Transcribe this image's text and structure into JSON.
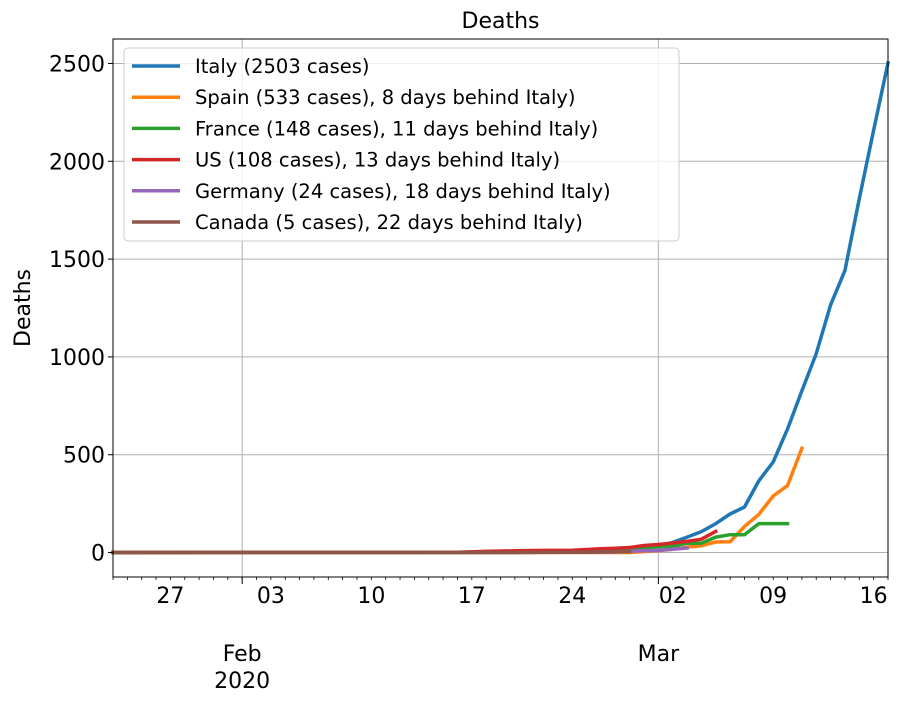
{
  "chart_data": {
    "type": "line",
    "title": "Deaths",
    "xlabel": "",
    "ylabel": "Deaths",
    "xlim": [
      "2020-01-23",
      "2020-03-17"
    ],
    "ylim": [
      -125,
      2625
    ],
    "grid": true,
    "legend_position": "top-left",
    "yticks": [
      0,
      500,
      1000,
      1500,
      2000,
      2500
    ],
    "xticks": [
      {
        "date": "2020-01-27",
        "label": "27"
      },
      {
        "date": "2020-02-03",
        "label": "03"
      },
      {
        "date": "2020-02-10",
        "label": "10"
      },
      {
        "date": "2020-02-17",
        "label": "17"
      },
      {
        "date": "2020-02-24",
        "label": "24"
      },
      {
        "date": "2020-03-02",
        "label": "02"
      },
      {
        "date": "2020-03-09",
        "label": "09"
      },
      {
        "date": "2020-03-16",
        "label": "16"
      }
    ],
    "month_labels": [
      {
        "date": "2020-02-01",
        "label": "Feb",
        "year": "2020"
      },
      {
        "date": "2020-03-01",
        "label": "Mar",
        "year": ""
      }
    ],
    "grid_dates": [
      "2020-02-01",
      "2020-03-01"
    ],
    "series": [
      {
        "name": "Italy (2503 cases)",
        "color": "#1f77b4",
        "points": [
          [
            "2020-01-23",
            0
          ],
          [
            "2020-02-20",
            0
          ],
          [
            "2020-02-21",
            1
          ],
          [
            "2020-02-22",
            2
          ],
          [
            "2020-02-23",
            3
          ],
          [
            "2020-02-24",
            7
          ],
          [
            "2020-02-25",
            10
          ],
          [
            "2020-02-26",
            12
          ],
          [
            "2020-02-27",
            17
          ],
          [
            "2020-02-28",
            21
          ],
          [
            "2020-02-29",
            29
          ],
          [
            "2020-03-01",
            34
          ],
          [
            "2020-03-02",
            52
          ],
          [
            "2020-03-03",
            79
          ],
          [
            "2020-03-04",
            107
          ],
          [
            "2020-03-05",
            148
          ],
          [
            "2020-03-06",
            197
          ],
          [
            "2020-03-07",
            233
          ],
          [
            "2020-03-08",
            366
          ],
          [
            "2020-03-09",
            463
          ],
          [
            "2020-03-10",
            631
          ],
          [
            "2020-03-11",
            827
          ],
          [
            "2020-03-12",
            1016
          ],
          [
            "2020-03-13",
            1266
          ],
          [
            "2020-03-14",
            1441
          ],
          [
            "2020-03-15",
            1809
          ],
          [
            "2020-03-16",
            2158
          ],
          [
            "2020-03-17",
            2503
          ]
        ]
      },
      {
        "name": "Spain (533 cases), 8 days behind Italy)",
        "color": "#ff7f0e",
        "points": [
          [
            "2020-01-23",
            0
          ],
          [
            "2020-02-28",
            0
          ],
          [
            "2020-02-29",
            5
          ],
          [
            "2020-03-01",
            10
          ],
          [
            "2020-03-02",
            17
          ],
          [
            "2020-03-03",
            28
          ],
          [
            "2020-03-04",
            35
          ],
          [
            "2020-03-05",
            54
          ],
          [
            "2020-03-06",
            55
          ],
          [
            "2020-03-07",
            133
          ],
          [
            "2020-03-08",
            195
          ],
          [
            "2020-03-09",
            289
          ],
          [
            "2020-03-10",
            342
          ],
          [
            "2020-03-11",
            533
          ]
        ]
      },
      {
        "name": "France (148 cases), 11 days behind Italy)",
        "color": "#2ca02c",
        "points": [
          [
            "2020-01-23",
            0
          ],
          [
            "2020-02-17",
            1
          ],
          [
            "2020-02-23",
            2
          ],
          [
            "2020-02-27",
            9
          ],
          [
            "2020-02-28",
            16
          ],
          [
            "2020-02-29",
            19
          ],
          [
            "2020-03-01",
            30
          ],
          [
            "2020-03-02",
            33
          ],
          [
            "2020-03-03",
            48
          ],
          [
            "2020-03-04",
            48
          ],
          [
            "2020-03-05",
            79
          ],
          [
            "2020-03-06",
            91
          ],
          [
            "2020-03-07",
            91
          ],
          [
            "2020-03-08",
            148
          ],
          [
            "2020-03-09",
            148
          ],
          [
            "2020-03-10",
            148
          ]
        ]
      },
      {
        "name": "US (108 cases), 13 days behind Italy)",
        "color": "#d62728",
        "points": [
          [
            "2020-01-23",
            0
          ],
          [
            "2020-02-16",
            1
          ],
          [
            "2020-02-18",
            6
          ],
          [
            "2020-02-20",
            9
          ],
          [
            "2020-02-22",
            11
          ],
          [
            "2020-02-24",
            12
          ],
          [
            "2020-02-26",
            19
          ],
          [
            "2020-02-27",
            22
          ],
          [
            "2020-02-28",
            26
          ],
          [
            "2020-02-29",
            36
          ],
          [
            "2020-03-01",
            41
          ],
          [
            "2020-03-02",
            49
          ],
          [
            "2020-03-03",
            57
          ],
          [
            "2020-03-04",
            68
          ],
          [
            "2020-03-05",
            108
          ]
        ]
      },
      {
        "name": "Germany (24 cases), 18 days behind Italy)",
        "color": "#9467bd",
        "points": [
          [
            "2020-02-24",
            2
          ],
          [
            "2020-02-25",
            2
          ],
          [
            "2020-02-26",
            3
          ],
          [
            "2020-02-27",
            3
          ],
          [
            "2020-02-28",
            7
          ],
          [
            "2020-02-29",
            9
          ],
          [
            "2020-03-01",
            11
          ],
          [
            "2020-03-02",
            17
          ],
          [
            "2020-03-03",
            24
          ]
        ]
      },
      {
        "name": "Canada (5 cases), 22 days behind Italy)",
        "color": "#8c564b",
        "points": [
          [
            "2020-01-23",
            0
          ],
          [
            "2020-02-20",
            0
          ],
          [
            "2020-02-23",
            1
          ],
          [
            "2020-02-25",
            1
          ],
          [
            "2020-02-27",
            4
          ],
          [
            "2020-02-28",
            5
          ]
        ]
      }
    ]
  }
}
